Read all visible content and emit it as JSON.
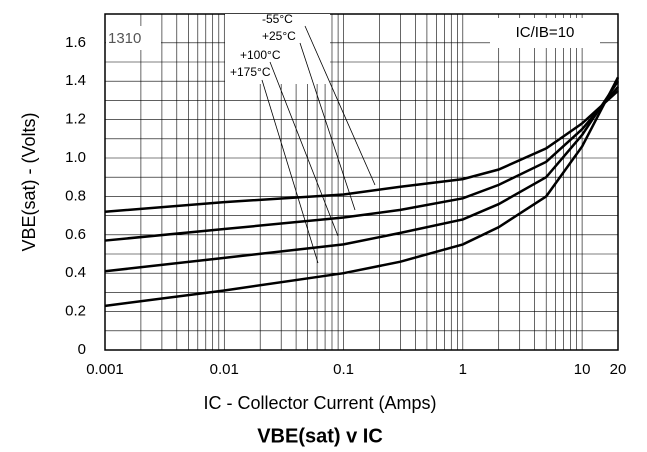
{
  "chart_data": {
    "type": "line",
    "title": "VBE(sat) v IC",
    "xlabel": "IC - Collector Current (Amps)",
    "ylabel": "VBE(sat) - (Volts)",
    "annotations": [
      "1310",
      "IC/IB=10"
    ],
    "log_x": true,
    "grid": true,
    "x": [
      0.001,
      0.01,
      0.1,
      0.3,
      1,
      2,
      5,
      10,
      20
    ],
    "series": [
      {
        "name": "-55°C",
        "color": "#000000",
        "values": [
          0.72,
          0.77,
          0.81,
          0.85,
          0.89,
          0.94,
          1.05,
          1.18,
          1.35
        ]
      },
      {
        "name": "+25°C",
        "color": "#000000",
        "values": [
          0.57,
          0.63,
          0.69,
          0.73,
          0.79,
          0.86,
          0.98,
          1.15,
          1.37
        ]
      },
      {
        "name": "+100°C",
        "color": "#000000",
        "values": [
          0.41,
          0.48,
          0.55,
          0.61,
          0.68,
          0.76,
          0.9,
          1.12,
          1.4
        ]
      },
      {
        "name": "+175°C",
        "color": "#000000",
        "values": [
          0.23,
          0.31,
          0.4,
          0.46,
          0.55,
          0.64,
          0.8,
          1.06,
          1.42
        ]
      }
    ],
    "xlim": [
      0.001,
      20
    ],
    "xticks": [
      0.001,
      0.01,
      0.1,
      1,
      10,
      20
    ],
    "ylim": [
      0,
      1.75
    ],
    "yticks": [
      0,
      0.2,
      0.4,
      0.6,
      0.8,
      {
        "value": 1,
        "label": "1.0"
      },
      1.2,
      1.4,
      1.6
    ]
  }
}
